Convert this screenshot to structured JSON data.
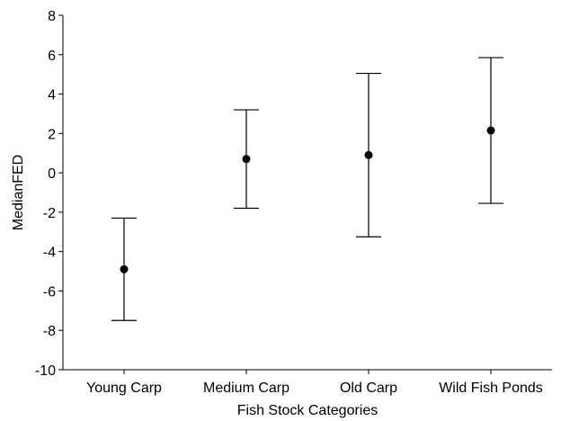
{
  "chart_data": {
    "type": "scatter",
    "title": "",
    "xlabel": "Fish Stock Categories",
    "ylabel": "MedianFED",
    "categories": [
      "Young Carp",
      "Medium Carp",
      "Old Carp",
      "Wild Fish Ponds"
    ],
    "series": [
      {
        "values": [
          -4.9,
          0.7,
          0.9,
          2.15
        ],
        "lower": [
          -7.5,
          -1.8,
          -3.25,
          -1.55
        ],
        "upper": [
          -2.3,
          3.2,
          5.05,
          5.85
        ]
      }
    ],
    "ylim": [
      -10,
      8
    ],
    "yticks": [
      "8",
      "6",
      "4",
      "2",
      "0",
      "-2",
      "-4",
      "-6",
      "-8",
      "-10"
    ],
    "grid": false,
    "legend": "none",
    "colors": {
      "marker": "#000000",
      "errorbar": "#000000",
      "axis": "#000000"
    }
  }
}
